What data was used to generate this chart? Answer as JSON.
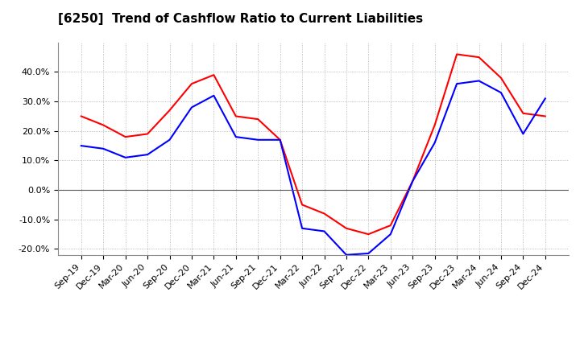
{
  "title": "[6250]  Trend of Cashflow Ratio to Current Liabilities",
  "x_labels": [
    "Sep-19",
    "Dec-19",
    "Mar-20",
    "Jun-20",
    "Sep-20",
    "Dec-20",
    "Mar-21",
    "Jun-21",
    "Sep-21",
    "Dec-21",
    "Mar-22",
    "Jun-22",
    "Sep-22",
    "Dec-22",
    "Mar-23",
    "Jun-23",
    "Sep-23",
    "Dec-23",
    "Mar-24",
    "Jun-24",
    "Sep-24",
    "Dec-24"
  ],
  "operating_cf": [
    25.0,
    22.0,
    18.0,
    19.0,
    27.0,
    36.0,
    39.0,
    25.0,
    24.0,
    17.0,
    -5.0,
    -8.0,
    -13.0,
    -15.0,
    -12.0,
    3.0,
    22.0,
    46.0,
    45.0,
    38.0,
    26.0,
    25.0
  ],
  "free_cf": [
    15.0,
    14.0,
    11.0,
    12.0,
    17.0,
    28.0,
    32.0,
    18.0,
    17.0,
    17.0,
    -13.0,
    -14.0,
    -22.0,
    -21.5,
    -15.0,
    3.0,
    16.0,
    36.0,
    37.0,
    33.0,
    19.0,
    31.0
  ],
  "operating_color": "#ff0000",
  "free_color": "#0000ff",
  "ylim": [
    -22.0,
    50.0
  ],
  "yticks": [
    -20.0,
    -10.0,
    0.0,
    10.0,
    20.0,
    30.0,
    40.0
  ],
  "background_color": "#ffffff",
  "grid_color": "#aaaaaa",
  "title_fontsize": 11,
  "tick_fontsize": 8,
  "legend_fontsize": 9
}
